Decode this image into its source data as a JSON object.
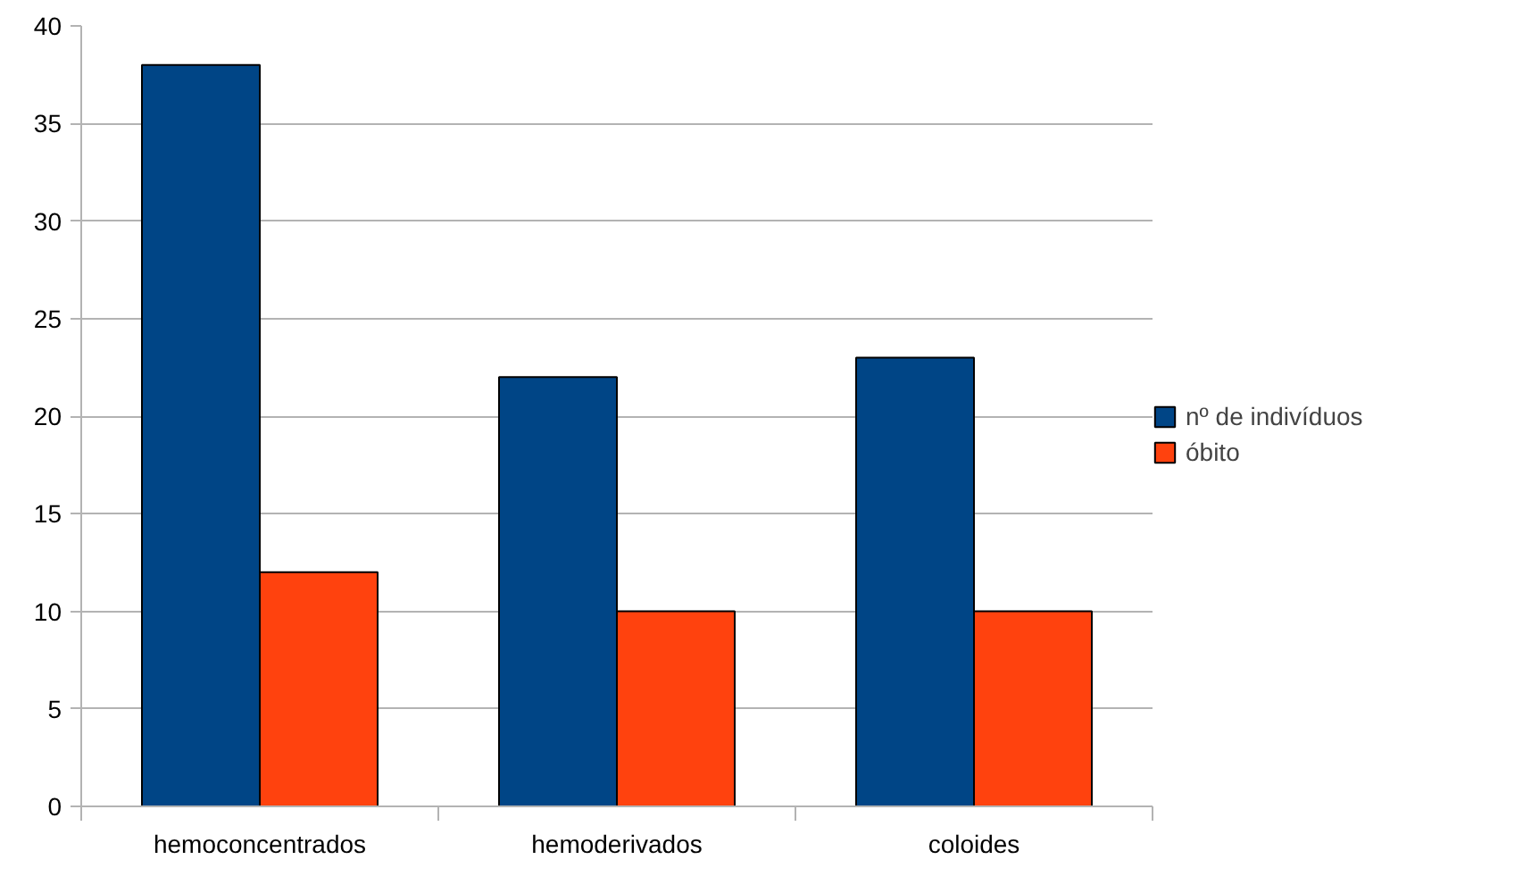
{
  "chart_data": {
    "type": "bar",
    "categories": [
      "hemoconcentrados",
      "hemoderivados",
      "coloides"
    ],
    "series": [
      {
        "name": "nº de indivíduos",
        "color": "#004586",
        "values": [
          38,
          22,
          23
        ]
      },
      {
        "name": "óbito",
        "color": "#ff420e",
        "values": [
          12,
          10,
          10
        ]
      }
    ],
    "ylim": [
      0,
      40
    ],
    "yticks": [
      0,
      5,
      10,
      15,
      20,
      25,
      30,
      35,
      40
    ],
    "grid": "y",
    "legend": "right"
  }
}
